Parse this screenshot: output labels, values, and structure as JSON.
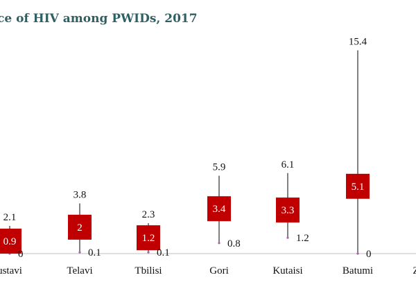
{
  "chart_data": {
    "type": "bar",
    "title": "ce of HIV among PWIDs, 2017",
    "xlabel": "",
    "ylabel": "",
    "ylim": [
      0,
      16.5
    ],
    "grid": false,
    "categories": [
      "ustavi",
      "Telavi",
      "Tbilisi",
      "Gori",
      "Kutaisi",
      "Batumi",
      "Z"
    ],
    "estimate": [
      0.9,
      2,
      1.2,
      3.4,
      3.3,
      5.1,
      null
    ],
    "lower": [
      0,
      0.1,
      0.1,
      0.8,
      1.2,
      0,
      null
    ],
    "upper": [
      2.1,
      3.8,
      2.3,
      5.9,
      6.1,
      15.4,
      null
    ],
    "estimate_labels": [
      "0.9",
      "2",
      "1.2",
      "3.4",
      "3.3",
      "5.1",
      ""
    ],
    "lower_labels": [
      "0",
      "0.1",
      "0.1",
      "0.8",
      "1.2",
      "0",
      ""
    ],
    "upper_labels": [
      "2.1",
      "3.8",
      "2.3",
      "5.9",
      "6.1",
      "15.4",
      ""
    ],
    "colors": {
      "box": "#c00000",
      "whisker": "#000000",
      "axis": "#bfbfbf",
      "title": "#2e5f63"
    }
  }
}
